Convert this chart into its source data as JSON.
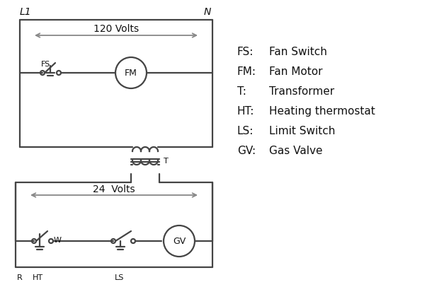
{
  "bg_color": "#ffffff",
  "line_color": "#444444",
  "arrow_color": "#888888",
  "text_color": "#111111",
  "legend": {
    "FS": "Fan Switch",
    "FM": "Fan Motor",
    "T": "Transformer",
    "HT": "Heating thermostat",
    "LS": "Limit Switch",
    "GV": "Gas Valve"
  },
  "volts_120": "120 Volts",
  "volts_24": "24  Volts",
  "L1": "L1",
  "N": "N",
  "lw": 1.6,
  "arrow_lw": 1.3
}
